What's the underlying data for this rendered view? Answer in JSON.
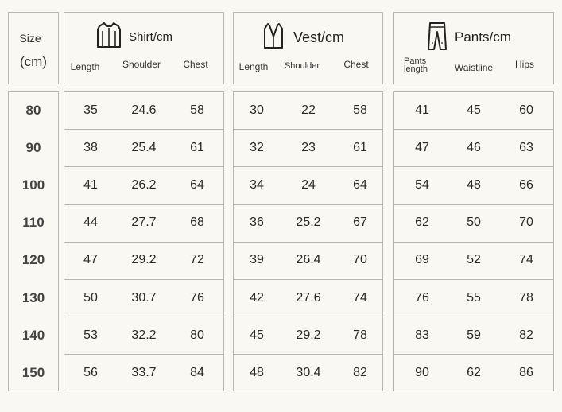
{
  "size_header": {
    "line1": "Size",
    "line2": "(cm)"
  },
  "groups": [
    {
      "title": "Shirt/cm",
      "icon": "shirt-icon",
      "columns": [
        "Length",
        "Shoulder",
        "Chest"
      ]
    },
    {
      "title": "Vest/cm",
      "icon": "vest-icon",
      "columns": [
        "Length",
        "Shoulder",
        "Chest"
      ]
    },
    {
      "title": "Pants/cm",
      "icon": "pants-icon",
      "columns": [
        "Pants length",
        "Waistline",
        "Hips"
      ]
    }
  ],
  "rows": [
    {
      "size": "80",
      "shirt": [
        "35",
        "24.6",
        "58"
      ],
      "vest": [
        "30",
        "22",
        "58"
      ],
      "pants": [
        "41",
        "45",
        "60"
      ]
    },
    {
      "size": "90",
      "shirt": [
        "38",
        "25.4",
        "61"
      ],
      "vest": [
        "32",
        "23",
        "61"
      ],
      "pants": [
        "47",
        "46",
        "63"
      ]
    },
    {
      "size": "100",
      "shirt": [
        "41",
        "26.2",
        "64"
      ],
      "vest": [
        "34",
        "24",
        "64"
      ],
      "pants": [
        "54",
        "48",
        "66"
      ]
    },
    {
      "size": "110",
      "shirt": [
        "44",
        "27.7",
        "68"
      ],
      "vest": [
        "36",
        "25.2",
        "67"
      ],
      "pants": [
        "62",
        "50",
        "70"
      ]
    },
    {
      "size": "120",
      "shirt": [
        "47",
        "29.2",
        "72"
      ],
      "vest": [
        "39",
        "26.4",
        "70"
      ],
      "pants": [
        "69",
        "52",
        "74"
      ]
    },
    {
      "size": "130",
      "shirt": [
        "50",
        "30.7",
        "76"
      ],
      "vest": [
        "42",
        "27.6",
        "74"
      ],
      "pants": [
        "76",
        "55",
        "78"
      ]
    },
    {
      "size": "140",
      "shirt": [
        "53",
        "32.2",
        "80"
      ],
      "vest": [
        "45",
        "29.2",
        "78"
      ],
      "pants": [
        "83",
        "59",
        "82"
      ]
    },
    {
      "size": "150",
      "shirt": [
        "56",
        "33.7",
        "84"
      ],
      "vest": [
        "48",
        "30.4",
        "82"
      ],
      "pants": [
        "90",
        "62",
        "86"
      ]
    }
  ]
}
